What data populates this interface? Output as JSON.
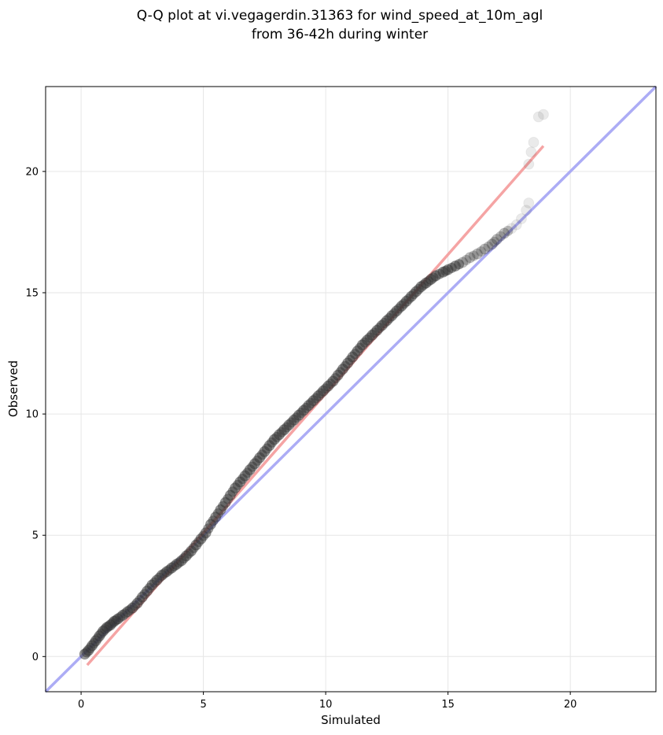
{
  "chart_data": {
    "type": "scatter",
    "title_line1": "Q-Q plot at vi.vegagerdin.31363 for wind_speed_at_10m_agl",
    "title_line2": "from 36-42h during winter",
    "xlabel": "Simulated",
    "ylabel": "Observed",
    "xlim": [
      -1.45,
      23.5
    ],
    "ylim": [
      -1.45,
      23.5
    ],
    "xticks": [
      0,
      5,
      10,
      15,
      20
    ],
    "yticks": [
      0,
      5,
      10,
      15,
      20
    ],
    "xtick_labels": [
      "0",
      "5",
      "10",
      "15",
      "20"
    ],
    "ytick_labels": [
      "0",
      "5",
      "10",
      "15",
      "20"
    ],
    "grid": true,
    "reference_lines": [
      {
        "kind": "identity",
        "color": "#a8a8f5",
        "x": [
          -1.45,
          23.5
        ],
        "y": [
          -1.45,
          23.5
        ]
      },
      {
        "kind": "fit",
        "color": "#f5a0a0",
        "x": [
          0.25,
          18.9
        ],
        "y": [
          -0.35,
          21.05
        ]
      }
    ],
    "point_color": "#333333",
    "quantiles": {
      "x": [
        0.15,
        0.3,
        0.45,
        0.6,
        0.75,
        0.9,
        1.05,
        1.2,
        1.35,
        1.5,
        1.7,
        1.9,
        2.1,
        2.3,
        2.5,
        2.7,
        2.9,
        3.1,
        3.3,
        3.5,
        3.7,
        3.9,
        4.1,
        4.3,
        4.5,
        4.7,
        4.9,
        5.1,
        5.3,
        5.5,
        5.7,
        5.9,
        6.1,
        6.3,
        6.5,
        6.7,
        6.9,
        7.1,
        7.3,
        7.5,
        7.7,
        7.9,
        8.1,
        8.3,
        8.5,
        8.7,
        8.9,
        9.1,
        9.3,
        9.5,
        9.7,
        9.9,
        10.1,
        10.3,
        10.5,
        10.7,
        10.9,
        11.1,
        11.3,
        11.5,
        11.7,
        11.9,
        12.1,
        12.3,
        12.5,
        12.7,
        12.9,
        13.1,
        13.3,
        13.5,
        13.7,
        13.9,
        14.1,
        14.3,
        14.5,
        14.8,
        15.0,
        15.3,
        15.6,
        15.9,
        16.2,
        16.5,
        16.8,
        17.0,
        17.3,
        17.6,
        17.8,
        18.0,
        18.2,
        18.3,
        18.3,
        18.4,
        18.5,
        18.7,
        18.9
      ],
      "y": [
        0.1,
        0.25,
        0.45,
        0.65,
        0.85,
        1.05,
        1.2,
        1.3,
        1.45,
        1.55,
        1.7,
        1.85,
        2.0,
        2.2,
        2.45,
        2.7,
        2.95,
        3.15,
        3.35,
        3.5,
        3.65,
        3.8,
        3.95,
        4.15,
        4.35,
        4.6,
        4.85,
        5.1,
        5.45,
        5.75,
        6.05,
        6.35,
        6.65,
        6.95,
        7.2,
        7.45,
        7.7,
        7.95,
        8.2,
        8.45,
        8.7,
        8.95,
        9.15,
        9.35,
        9.55,
        9.75,
        9.95,
        10.15,
        10.35,
        10.55,
        10.75,
        10.95,
        11.15,
        11.35,
        11.6,
        11.85,
        12.1,
        12.35,
        12.6,
        12.85,
        13.05,
        13.25,
        13.45,
        13.65,
        13.85,
        14.05,
        14.25,
        14.45,
        14.65,
        14.85,
        15.05,
        15.25,
        15.4,
        15.55,
        15.7,
        15.85,
        15.95,
        16.1,
        16.25,
        16.45,
        16.6,
        16.8,
        17.0,
        17.2,
        17.45,
        17.65,
        17.8,
        18.05,
        18.4,
        18.7,
        20.3,
        20.8,
        21.2,
        22.25,
        22.35
      ]
    }
  }
}
